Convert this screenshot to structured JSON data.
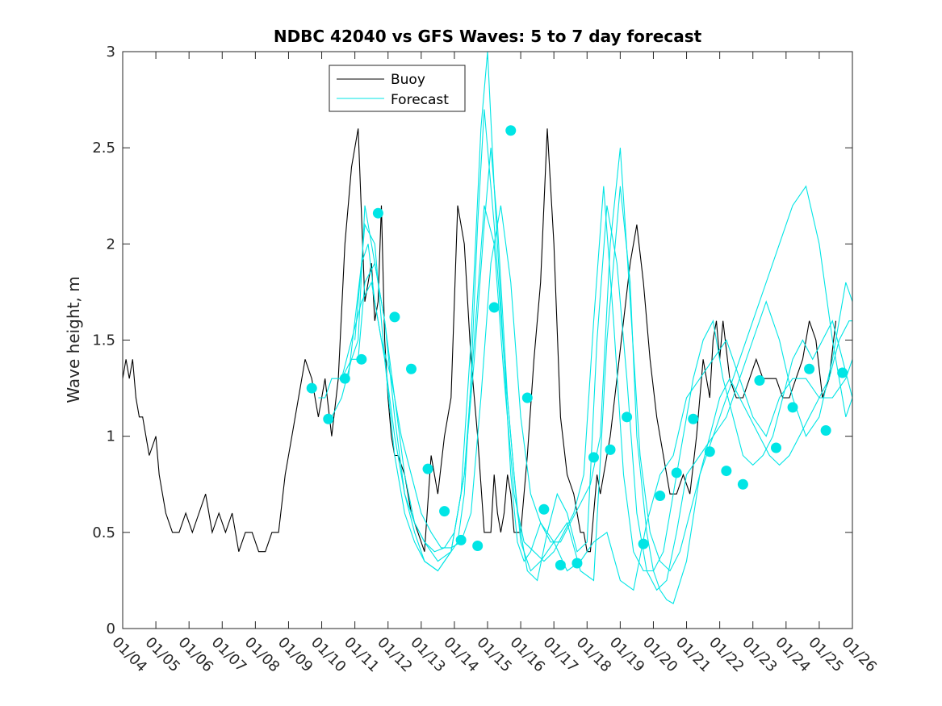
{
  "chart_data": {
    "type": "line",
    "title": "NDBC 42040 vs GFS Waves: 5 to 7 day forecast",
    "xlabel": "",
    "ylabel": "Wave height, m",
    "xlim": [
      0,
      22
    ],
    "ylim": [
      0,
      3
    ],
    "x_ticks": [
      0,
      1,
      2,
      3,
      4,
      5,
      6,
      7,
      8,
      9,
      10,
      11,
      12,
      13,
      14,
      15,
      16,
      17,
      18,
      19,
      20,
      21,
      22
    ],
    "x_tick_labels": [
      "01/04",
      "01/05",
      "01/06",
      "01/07",
      "01/08",
      "01/09",
      "01/10",
      "01/11",
      "01/12",
      "01/13",
      "01/14",
      "01/15",
      "01/16",
      "01/17",
      "01/18",
      "01/19",
      "01/20",
      "01/21",
      "01/22",
      "01/23",
      "01/24",
      "01/25",
      "01/26"
    ],
    "y_ticks": [
      0,
      0.5,
      1,
      1.5,
      2,
      2.5,
      3
    ],
    "y_tick_labels": [
      "0",
      "0.5",
      "1",
      "1.5",
      "2",
      "2.5",
      "3"
    ],
    "legend": {
      "location": "top-left",
      "entries": [
        {
          "label": "Buoy",
          "color": "#000000"
        },
        {
          "label": "Forecast",
          "color": "#00e5e5"
        }
      ]
    },
    "series": [
      {
        "name": "Buoy",
        "color": "#000000",
        "x": [
          0,
          0.1,
          0.2,
          0.3,
          0.4,
          0.5,
          0.6,
          0.8,
          1.0,
          1.1,
          1.3,
          1.5,
          1.7,
          1.9,
          2.1,
          2.3,
          2.5,
          2.7,
          2.9,
          3.1,
          3.3,
          3.5,
          3.7,
          3.9,
          4.1,
          4.3,
          4.5,
          4.7,
          4.9,
          5.1,
          5.3,
          5.5,
          5.7,
          5.9,
          6.1,
          6.3,
          6.5,
          6.7,
          6.9,
          7.1,
          7.3,
          7.5,
          7.6,
          7.7,
          7.8,
          7.9,
          8.0,
          8.1,
          8.2,
          8.3,
          8.5,
          8.7,
          8.9,
          9.1,
          9.3,
          9.5,
          9.7,
          9.9,
          10.1,
          10.3,
          10.5,
          10.7,
          10.9,
          11.1,
          11.2,
          11.3,
          11.4,
          11.5,
          11.6,
          11.7,
          11.8,
          12.0,
          12.2,
          12.4,
          12.6,
          12.8,
          13.0,
          13.2,
          13.4,
          13.6,
          13.8,
          13.9,
          14.0,
          14.1,
          14.2,
          14.3,
          14.4,
          14.5,
          14.7,
          14.9,
          15.1,
          15.3,
          15.5,
          15.7,
          15.9,
          16.1,
          16.3,
          16.5,
          16.7,
          16.9,
          17.1,
          17.3,
          17.5,
          17.7,
          17.8,
          17.9,
          18.0,
          18.1,
          18.3,
          18.5,
          18.7,
          18.9,
          19.1,
          19.3,
          19.5,
          19.7,
          19.9,
          20.1,
          20.3,
          20.5,
          20.7,
          20.9,
          21.1,
          21.3,
          21.5
        ],
        "values": [
          1.3,
          1.4,
          1.3,
          1.4,
          1.2,
          1.1,
          1.1,
          0.9,
          1.0,
          0.8,
          0.6,
          0.5,
          0.5,
          0.6,
          0.5,
          0.6,
          0.7,
          0.5,
          0.6,
          0.5,
          0.6,
          0.4,
          0.5,
          0.5,
          0.4,
          0.4,
          0.5,
          0.5,
          0.8,
          1.0,
          1.2,
          1.4,
          1.3,
          1.1,
          1.3,
          1.0,
          1.3,
          2.0,
          2.4,
          2.6,
          1.7,
          1.9,
          1.6,
          1.7,
          2.2,
          1.5,
          1.2,
          1.0,
          0.9,
          0.9,
          0.8,
          0.6,
          0.5,
          0.4,
          0.9,
          0.7,
          1.0,
          1.2,
          2.2,
          2.0,
          1.4,
          1.0,
          0.5,
          0.5,
          0.8,
          0.6,
          0.5,
          0.6,
          0.8,
          0.7,
          0.5,
          0.5,
          0.9,
          1.4,
          1.8,
          2.6,
          2.0,
          1.1,
          0.8,
          0.7,
          0.5,
          0.5,
          0.4,
          0.4,
          0.6,
          0.8,
          0.7,
          0.8,
          1.0,
          1.3,
          1.6,
          1.9,
          2.1,
          1.8,
          1.4,
          1.1,
          0.9,
          0.7,
          0.7,
          0.8,
          0.7,
          1.0,
          1.4,
          1.2,
          1.5,
          1.6,
          1.4,
          1.6,
          1.3,
          1.2,
          1.2,
          1.3,
          1.4,
          1.3,
          1.3,
          1.3,
          1.2,
          1.2,
          1.3,
          1.4,
          1.6,
          1.5,
          1.2,
          1.3,
          1.6
        ]
      },
      {
        "name": "Forecast run 1",
        "color": "#00e5e5",
        "x": [
          5.9,
          6.1,
          6.3,
          6.6,
          6.9,
          7.1,
          7.3,
          7.6,
          7.9,
          8.2,
          8.5,
          8.8,
          9.1,
          9.5,
          9.9,
          10.1,
          10.3,
          10.5,
          10.7,
          10.9,
          11.2,
          11.5,
          11.7,
          11.9,
          12.1,
          12.3,
          12.6,
          13.0,
          13.4,
          13.8,
          14.2,
          14.6,
          15.0,
          15.4,
          15.8,
          16.2,
          16.6,
          17.0,
          17.4,
          17.8,
          18.2,
          18.6,
          19.0,
          19.4,
          19.8,
          20.2,
          20.6,
          21.0,
          21.4,
          21.8,
          22.0
        ],
        "values": [
          1.2,
          1.2,
          1.3,
          1.3,
          1.4,
          1.4,
          1.8,
          1.9,
          1.6,
          1.2,
          0.8,
          0.55,
          0.45,
          0.35,
          0.4,
          0.45,
          0.7,
          1.3,
          2.1,
          2.7,
          2.1,
          1.4,
          0.8,
          0.45,
          0.35,
          0.4,
          0.55,
          0.45,
          0.3,
          0.35,
          0.45,
          0.5,
          0.25,
          0.2,
          0.55,
          0.8,
          0.9,
          1.2,
          1.3,
          1.4,
          1.5,
          1.3,
          1.1,
          1.0,
          1.2,
          1.3,
          1.3,
          1.2,
          1.2,
          1.3,
          1.4
        ]
      },
      {
        "name": "Forecast run 2",
        "color": "#00e5e5",
        "x": [
          6.3,
          6.6,
          6.9,
          7.1,
          7.3,
          7.6,
          7.9,
          8.2,
          8.5,
          8.8,
          9.1,
          9.5,
          9.9,
          10.2,
          10.5,
          10.8,
          11.0,
          11.2,
          11.5,
          11.8,
          12.0,
          12.3,
          12.6,
          13.0,
          13.4,
          13.8,
          14.2,
          14.6,
          15.0,
          15.3,
          15.5,
          15.8,
          16.0,
          16.2,
          16.4,
          16.6,
          17.0,
          17.4,
          17.8,
          18.2,
          18.6,
          19.0,
          19.4,
          19.8,
          20.2,
          20.6,
          21.0,
          21.4,
          21.8,
          22.0
        ],
        "values": [
          1.1,
          1.2,
          1.4,
          1.5,
          2.2,
          1.9,
          1.6,
          1.1,
          0.7,
          0.5,
          0.35,
          0.3,
          0.4,
          0.7,
          1.5,
          2.6,
          3.0,
          2.3,
          1.4,
          0.8,
          0.45,
          0.3,
          0.35,
          0.45,
          0.55,
          0.3,
          0.25,
          1.5,
          2.3,
          1.8,
          1.0,
          0.5,
          0.3,
          0.2,
          0.15,
          0.13,
          0.35,
          0.8,
          1.0,
          1.2,
          1.4,
          1.6,
          1.8,
          2.0,
          2.2,
          2.3,
          2.0,
          1.5,
          1.1,
          1.2
        ]
      },
      {
        "name": "Forecast run 3",
        "color": "#00e5e5",
        "x": [
          7.0,
          7.3,
          7.6,
          7.9,
          8.2,
          8.5,
          8.8,
          9.1,
          9.5,
          9.9,
          10.3,
          10.6,
          10.9,
          11.1,
          11.3,
          11.6,
          11.9,
          12.2,
          12.5,
          12.8,
          13.1,
          13.4,
          13.7,
          14.0,
          14.3,
          14.6,
          14.9,
          15.2,
          15.5,
          15.8,
          16.1,
          16.4,
          16.7,
          17.0,
          17.4,
          17.8,
          18.2,
          18.6,
          19.0,
          19.4,
          19.8,
          20.2,
          20.6,
          21.0,
          21.4,
          21.8,
          22.0
        ],
        "values": [
          1.5,
          2.1,
          2.0,
          1.4,
          0.9,
          0.6,
          0.45,
          0.35,
          0.3,
          0.4,
          0.8,
          1.4,
          2.1,
          2.5,
          2.1,
          1.2,
          0.6,
          0.3,
          0.25,
          0.5,
          0.7,
          0.6,
          0.4,
          0.45,
          1.5,
          2.2,
          1.9,
          1.3,
          0.6,
          0.3,
          0.2,
          0.25,
          0.5,
          0.8,
          0.9,
          1.0,
          1.1,
          1.3,
          1.5,
          1.7,
          1.5,
          1.2,
          1.0,
          1.1,
          1.4,
          1.8,
          1.7
        ]
      },
      {
        "name": "Forecast run 4",
        "color": "#00e5e5",
        "x": [
          6.8,
          7.0,
          7.2,
          7.4,
          7.6,
          7.9,
          8.2,
          8.5,
          8.8,
          9.1,
          9.4,
          9.7,
          10.0,
          10.3,
          10.6,
          10.9,
          11.2,
          11.5,
          11.8,
          12.1,
          12.4,
          12.7,
          13.0,
          13.3,
          13.6,
          13.9,
          14.2,
          14.5,
          14.8,
          15.1,
          15.4,
          15.7,
          16.0,
          16.3,
          16.6,
          16.9,
          17.2,
          17.5,
          17.8,
          18.1,
          18.4,
          18.7,
          19.0,
          19.3,
          19.6,
          19.9,
          20.2,
          20.5,
          20.8,
          21.1,
          21.4,
          21.7,
          22.0
        ],
        "values": [
          1.3,
          1.6,
          1.9,
          2.0,
          1.7,
          1.4,
          1.0,
          0.7,
          0.55,
          0.45,
          0.4,
          0.42,
          0.5,
          0.8,
          1.5,
          2.2,
          2.0,
          1.3,
          0.7,
          0.45,
          0.4,
          0.35,
          0.4,
          0.5,
          0.6,
          0.8,
          1.6,
          2.3,
          1.6,
          0.8,
          0.4,
          0.3,
          0.3,
          0.4,
          0.7,
          1.0,
          1.3,
          1.5,
          1.6,
          1.3,
          1.1,
          0.9,
          0.85,
          0.9,
          1.0,
          1.2,
          1.4,
          1.5,
          1.4,
          1.5,
          1.6,
          1.4,
          1.2
        ]
      },
      {
        "name": "Forecast run 5",
        "color": "#00e5e5",
        "x": [
          6.6,
          6.9,
          7.2,
          7.5,
          7.8,
          8.1,
          8.4,
          8.7,
          9.0,
          9.3,
          9.6,
          9.9,
          10.2,
          10.5,
          10.8,
          11.1,
          11.4,
          11.7,
          12.0,
          12.3,
          12.6,
          12.9,
          13.2,
          13.5,
          13.8,
          14.1,
          14.4,
          14.7,
          15.0,
          15.3,
          15.6,
          15.9,
          16.2,
          16.5,
          16.8,
          17.1,
          17.4,
          17.7,
          18.0,
          18.3,
          18.6,
          18.9,
          19.2,
          19.5,
          19.8,
          20.1,
          20.4,
          20.7,
          21.0,
          21.3,
          21.6,
          21.9,
          22.0
        ],
        "values": [
          1.3,
          1.5,
          1.7,
          1.8,
          1.5,
          1.3,
          1.0,
          0.8,
          0.6,
          0.5,
          0.42,
          0.42,
          0.45,
          0.6,
          1.2,
          1.9,
          2.2,
          1.8,
          1.1,
          0.7,
          0.55,
          0.45,
          0.45,
          0.55,
          0.65,
          0.75,
          1.0,
          2.0,
          2.5,
          1.7,
          0.9,
          0.5,
          0.35,
          0.3,
          0.4,
          0.6,
          0.8,
          1.0,
          1.2,
          1.3,
          1.2,
          1.1,
          1.0,
          0.9,
          0.85,
          0.9,
          1.0,
          1.1,
          1.2,
          1.3,
          1.5,
          1.6,
          1.6
        ]
      },
      {
        "name": "Forecast samples",
        "color": "#00e5e5",
        "x": [
          5.7,
          6.2,
          6.7,
          7.2,
          7.7,
          8.2,
          8.7,
          9.2,
          9.7,
          10.2,
          10.7,
          11.2,
          11.7,
          12.2,
          12.7,
          13.2,
          13.7,
          14.2,
          14.7,
          15.2,
          15.7,
          16.2,
          16.7,
          17.2,
          17.7,
          18.2,
          18.7,
          19.2,
          19.7,
          20.2,
          20.7,
          21.2
        ],
        "values": [
          1.25,
          1.09,
          1.3,
          1.4,
          2.16,
          1.62,
          1.35,
          0.83,
          0.61,
          0.46,
          0.43,
          1.67,
          2.59,
          1.2,
          0.62,
          0.33,
          0.34,
          0.89,
          0.93,
          1.1,
          0.44,
          0.69,
          0.81,
          1.09,
          0.92,
          0.82,
          0.75,
          1.29,
          0.94,
          1.15,
          1.35,
          1.03
        ]
      },
      {
        "name": "Forecast samples (last)",
        "color": "#00e5e5",
        "x": [
          21.7
        ],
        "values": [
          1.33
        ]
      }
    ]
  }
}
